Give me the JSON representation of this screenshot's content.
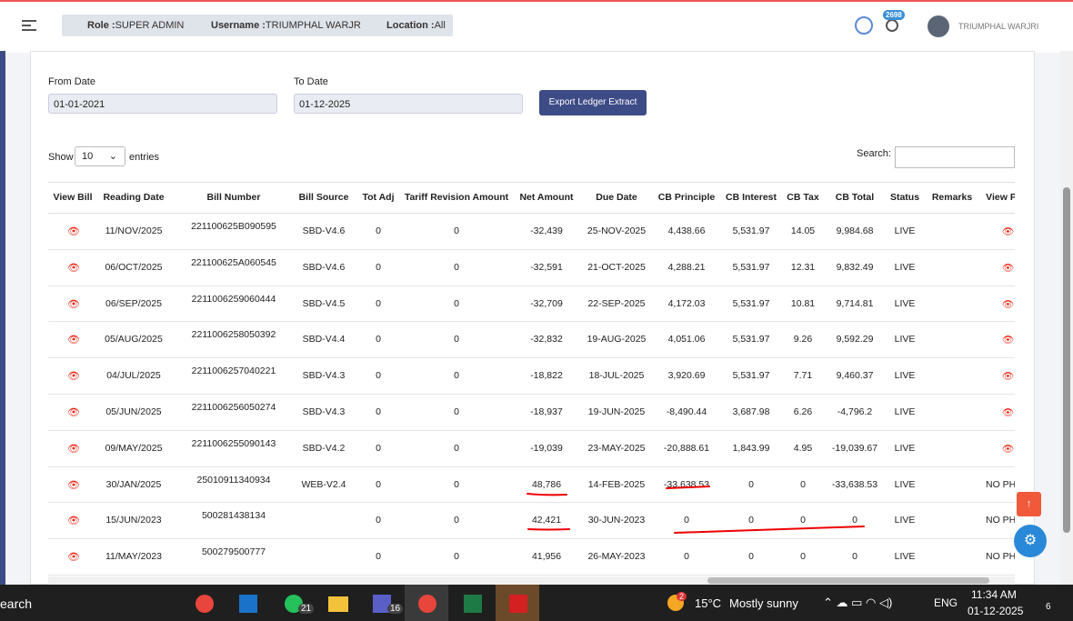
{
  "header": {
    "role_label": "Role :",
    "role": "SUPER ADMIN",
    "username_label": "Username :",
    "username": "TRIUMPHAL WARJRI",
    "location_label": "Location :",
    "location": "All",
    "notification_count": "2698",
    "user_name": "TRIUMPHAL WARJRI"
  },
  "form": {
    "from_label": "From Date",
    "from_value": "01-01-2021",
    "to_label": "To Date",
    "to_value": "01-12-2025",
    "export_button": "Export Ledger Extract"
  },
  "table_controls": {
    "show": "Show",
    "entries_value": "10",
    "entries": "entries",
    "search": "Search:"
  },
  "table": {
    "columns": [
      "View Bill",
      "Reading Date",
      "Bill Number",
      "Bill Source",
      "Tot Adj",
      "Tariff Revision Amount",
      "Net Amount",
      "Due Date",
      "CB Principle",
      "CB Interest",
      "CB Tax",
      "CB Total",
      "Status",
      "Remarks",
      "View PDF"
    ],
    "rows": [
      {
        "reading_date": "11/NOV/2025",
        "bill_number": "221100625B090595",
        "bill_source": "SBD-V4.6",
        "tot_adj": "0",
        "tariff_revision_amount": "0",
        "net_amount": "-32,439",
        "due_date": "25-NOV-2025",
        "cb_principle": "4,438.66",
        "cb_interest": "5,531.97",
        "cb_tax": "14.05",
        "cb_total": "9,984.68",
        "status": "LIVE"
      },
      {
        "reading_date": "06/OCT/2025",
        "bill_number": "221100625A060545",
        "bill_source": "SBD-V4.6",
        "tot_adj": "0",
        "tariff_revision_amount": "0",
        "net_amount": "-32,591",
        "due_date": "21-OCT-2025",
        "cb_principle": "4,288.21",
        "cb_interest": "5,531.97",
        "cb_tax": "12.31",
        "cb_total": "9,832.49",
        "status": "LIVE"
      },
      {
        "reading_date": "06/SEP/2025",
        "bill_number": "2211006259060444",
        "bill_source": "SBD-V4.5",
        "tot_adj": "0",
        "tariff_revision_amount": "0",
        "net_amount": "-32,709",
        "due_date": "22-SEP-2025",
        "cb_principle": "4,172.03",
        "cb_interest": "5,531.97",
        "cb_tax": "10.81",
        "cb_total": "9,714.81",
        "status": "LIVE"
      },
      {
        "reading_date": "05/AUG/2025",
        "bill_number": "2211006258050392",
        "bill_source": "SBD-V4.4",
        "tot_adj": "0",
        "tariff_revision_amount": "0",
        "net_amount": "-32,832",
        "due_date": "19-AUG-2025",
        "cb_principle": "4,051.06",
        "cb_interest": "5,531.97",
        "cb_tax": "9.26",
        "cb_total": "9,592.29",
        "status": "LIVE"
      },
      {
        "reading_date": "04/JUL/2025",
        "bill_number": "2211006257040221",
        "bill_source": "SBD-V4.3",
        "tot_adj": "0",
        "tariff_revision_amount": "0",
        "net_amount": "-18,822",
        "due_date": "18-JUL-2025",
        "cb_principle": "3,920.69",
        "cb_interest": "5,531.97",
        "cb_tax": "7.71",
        "cb_total": "9,460.37",
        "status": "LIVE"
      },
      {
        "reading_date": "05/JUN/2025",
        "bill_number": "2211006256050274",
        "bill_source": "SBD-V4.3",
        "tot_adj": "0",
        "tariff_revision_amount": "0",
        "net_amount": "-18,937",
        "due_date": "19-JUN-2025",
        "cb_principle": "-8,490.44",
        "cb_interest": "3,687.98",
        "cb_tax": "6.26",
        "cb_total": "-4,796.2",
        "status": "LIVE"
      },
      {
        "reading_date": "09/MAY/2025",
        "bill_number": "2211006255090143",
        "bill_source": "SBD-V4.2",
        "tot_adj": "0",
        "tariff_revision_amount": "0",
        "net_amount": "-19,039",
        "due_date": "23-MAY-2025",
        "cb_principle": "-20,888.61",
        "cb_interest": "1,843.99",
        "cb_tax": "4.95",
        "cb_total": "-19,039.67",
        "status": "LIVE"
      },
      {
        "reading_date": "30/JAN/2025",
        "bill_number": "25010911340934",
        "bill_source": "WEB-V2.4",
        "tot_adj": "0",
        "tariff_revision_amount": "0",
        "net_amount": "48,786",
        "due_date": "14-FEB-2025",
        "cb_principle": "-33,638.53",
        "cb_interest": "0",
        "cb_tax": "0",
        "cb_total": "-33,638.53",
        "status": "LIVE",
        "view_pdf": "NO PHOTO"
      },
      {
        "reading_date": "15/JUN/2023",
        "bill_number": "500281438134",
        "tot_adj": "0",
        "tariff_revision_amount": "0",
        "net_amount": "42,421",
        "due_date": "30-JUN-2023",
        "cb_principle": "0",
        "cb_interest": "0",
        "cb_tax": "0",
        "cb_total": "0",
        "status": "LIVE",
        "view_pdf": "NO PHOTO"
      },
      {
        "reading_date": "11/MAY/2023",
        "bill_number": "500279500777",
        "tot_adj": "0",
        "tariff_revision_amount": "0",
        "net_amount": "41,956",
        "due_date": "26-MAY-2023",
        "cb_principle": "0",
        "cb_interest": "0",
        "cb_tax": "0",
        "cb_total": "0",
        "status": "LIVE",
        "view_pdf": "NO PHOTO"
      }
    ]
  },
  "taskbar": {
    "search": "earch",
    "whatsapp_badge": "21",
    "teams_badge": "16",
    "weather_badge": "2",
    "temperature": "15°C",
    "weather": "Mostly sunny",
    "language": "ENG",
    "time": "11:34 AM",
    "date": "01-12-2025",
    "notifications": "6"
  }
}
